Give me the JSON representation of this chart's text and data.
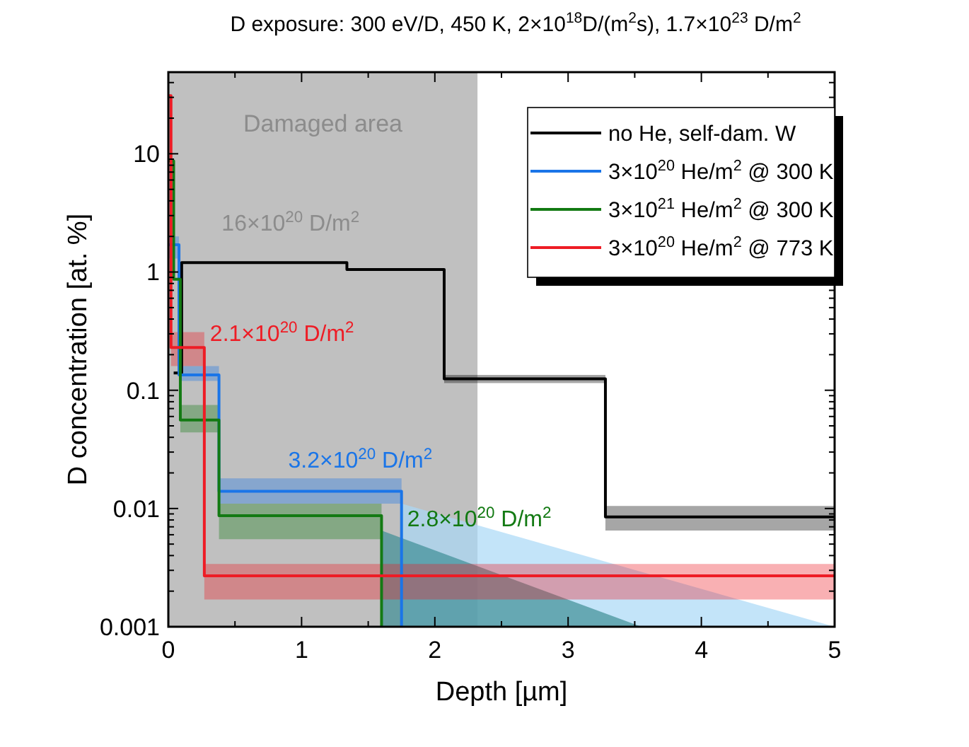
{
  "chart_data": {
    "type": "line",
    "title": "D exposure: 300 eV/D, 450 K, 2×10$^{18}$D/(m$^{2}$s), 1.7×10$^{23}$ D/m$^{2}$",
    "xlabel": "Depth [µm]",
    "ylabel": "D concentration [at. %]",
    "xlim": [
      0,
      5
    ],
    "xticks": [
      0,
      1,
      2,
      3,
      4,
      5
    ],
    "ylim": [
      0.001,
      49
    ],
    "yticks": [
      0.001,
      0.01,
      0.1,
      1,
      10
    ],
    "log": "y",
    "legend": "top right",
    "line_style": "solid",
    "series": [
      {
        "type": "area",
        "color": "#a9d8f7",
        "x": [
          1.75,
          5
        ],
        "values": [
          0.011,
          0.001
        ]
      },
      {
        "type": "area",
        "color": "#3f8f96",
        "x": [
          1.6,
          3.55
        ],
        "values": [
          0.0065,
          0.001
        ]
      },
      {
        "name": "no He, self-dam. W",
        "color": "#000000",
        "x": [
          0.04,
          0.1,
          0.1,
          1.34,
          1.34,
          2.07,
          2.07,
          3.28,
          3.28,
          5
        ],
        "values": [
          0.14,
          0.14,
          1.2,
          1.2,
          1.05,
          1.05,
          0.125,
          0.125,
          0.0085,
          0.0085
        ],
        "lower": [
          null,
          null,
          null,
          null,
          null,
          null,
          0.115,
          0.115,
          0.0065,
          0.0065
        ],
        "upper": [
          null,
          null,
          null,
          null,
          null,
          null,
          0.135,
          0.135,
          0.0105,
          0.0105
        ]
      },
      {
        "name": "3×10$^{20}$ He/m$^{2}$ @ 300 K",
        "color": "#1a75e8",
        "x": [
          0,
          0.08,
          0.08,
          0.38,
          0.38,
          1.75,
          1.75
        ],
        "values": [
          1.7,
          1.7,
          0.135,
          0.135,
          0.014,
          0.014,
          0.001
        ],
        "lower": [
          1.3,
          1.3,
          0.12,
          0.12,
          0.011,
          0.011,
          null
        ],
        "upper": [
          2.0,
          2.0,
          0.16,
          0.16,
          0.018,
          0.018,
          null
        ]
      },
      {
        "name": "3×10$^{21}$ He/m$^{2}$ @ 300 K",
        "color": "#137a13",
        "x": [
          0,
          0.04,
          0.04,
          0.09,
          0.09,
          0.38,
          0.38,
          1.6,
          1.6
        ],
        "values": [
          8.7,
          8.7,
          0.87,
          0.87,
          0.056,
          0.056,
          0.0087,
          0.0087,
          0.001
        ],
        "lower": [
          null,
          null,
          null,
          null,
          0.044,
          0.044,
          0.0055,
          0.0055,
          null
        ],
        "upper": [
          null,
          null,
          null,
          null,
          0.075,
          0.075,
          0.011,
          0.011,
          null
        ]
      },
      {
        "name": "3×10$^{20}$ He/m$^{2}$ @ 773 K",
        "color": "#ee1c25",
        "x": [
          0,
          0.02,
          0.02,
          0.27,
          0.27,
          5
        ],
        "values": [
          31,
          31,
          0.23,
          0.23,
          0.0027,
          0.0027
        ],
        "lower": [
          null,
          null,
          0.16,
          0.16,
          0.0017,
          0.0017
        ],
        "upper": [
          null,
          null,
          0.31,
          0.31,
          0.0034,
          0.0034
        ]
      }
    ],
    "bands": [
      {
        "axis": "x",
        "from": 0,
        "to": 2.32,
        "label": "Damaged area",
        "color": "#c0c0c0"
      }
    ],
    "annotations": [
      "16×10$^{20}$ D/m$^{2}$",
      {
        "text": "2.1×10$^{20}$ D/m$^{2}$",
        "x": 0.27,
        "y": 0.23
      },
      "3.2×10$^{20}$ D/m$^{2}$",
      {
        "text": "2.8×10$^{20}$ D/m$^{2}$",
        "x": 1.75,
        "y": 0.0063
      }
    ]
  }
}
